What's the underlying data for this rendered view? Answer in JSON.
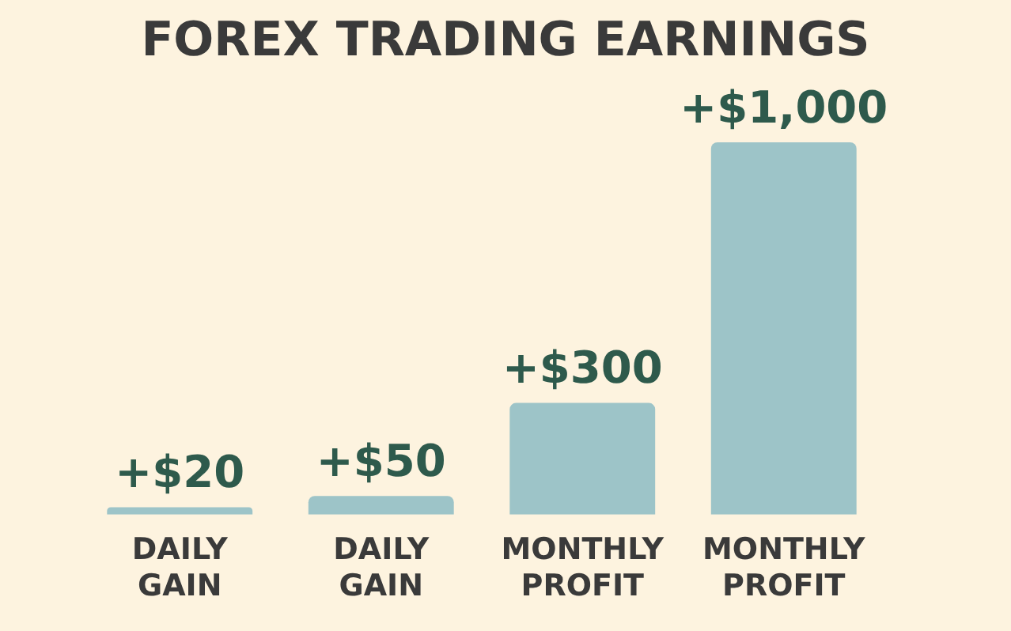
{
  "chart_data": {
    "type": "bar",
    "title": "FOREX TRADING EARNINGS",
    "categories": [
      "DAILY GAIN",
      "DAILY GAIN",
      "MONTHLY PROFIT",
      "MONTHLY PROFIT"
    ],
    "values": [
      20,
      50,
      300,
      1000
    ],
    "color": "#9dc4c8",
    "value_labels": [
      "+$20",
      "+$50",
      "+$300",
      "+$1,000"
    ],
    "ylim": [
      0,
      1000
    ],
    "grid": false,
    "legend": false,
    "tick_labels": "x"
  }
}
